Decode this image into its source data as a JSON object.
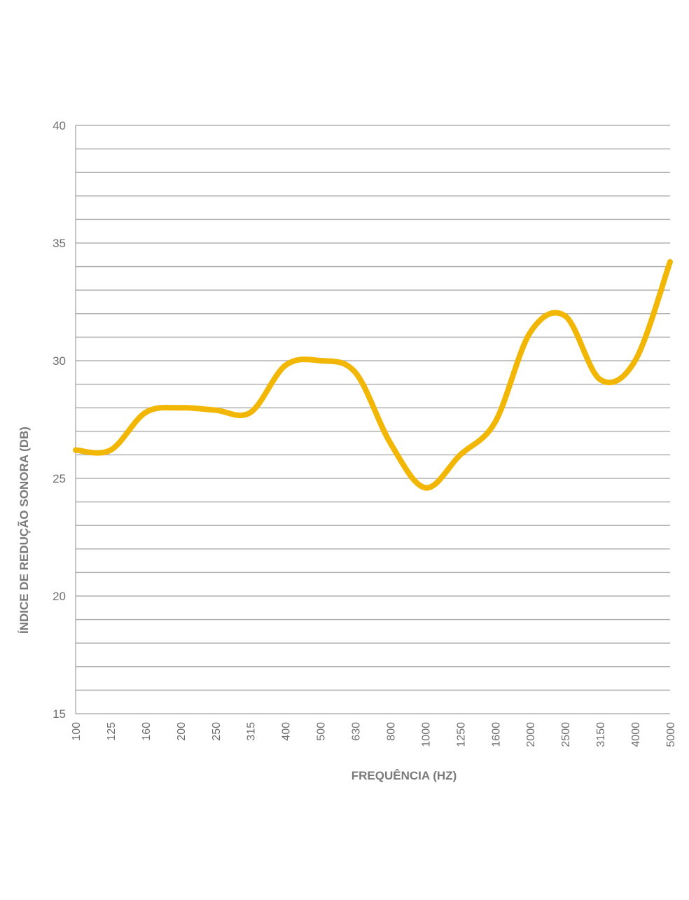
{
  "chart_data": {
    "type": "line",
    "title": "",
    "xlabel": "FREQUÊNCIA (HZ)",
    "ylabel": "ÍNDICE DE REDUÇÃO SONORA (DB)",
    "categories": [
      "100",
      "125",
      "160",
      "200",
      "250",
      "315",
      "400",
      "500",
      "630",
      "800",
      "1000",
      "1250",
      "1600",
      "2000",
      "2500",
      "3150",
      "4000",
      "5000"
    ],
    "series": [
      {
        "values": [
          26.2,
          26.2,
          27.8,
          28,
          27.9,
          27.8,
          29.8,
          30,
          29.5,
          26.5,
          24.6,
          26,
          27.4,
          31.2,
          31.9,
          29.2,
          30,
          34.2
        ]
      }
    ],
    "ylim": [
      15,
      40
    ],
    "yticks": [
      15,
      20,
      25,
      30,
      35,
      40
    ],
    "ygrid_step": 1,
    "grid": true,
    "legend": "none",
    "colors": {
      "line": "#F2B705",
      "grid": "#b0b0b0",
      "axis_text": "#6f6f6f"
    }
  }
}
